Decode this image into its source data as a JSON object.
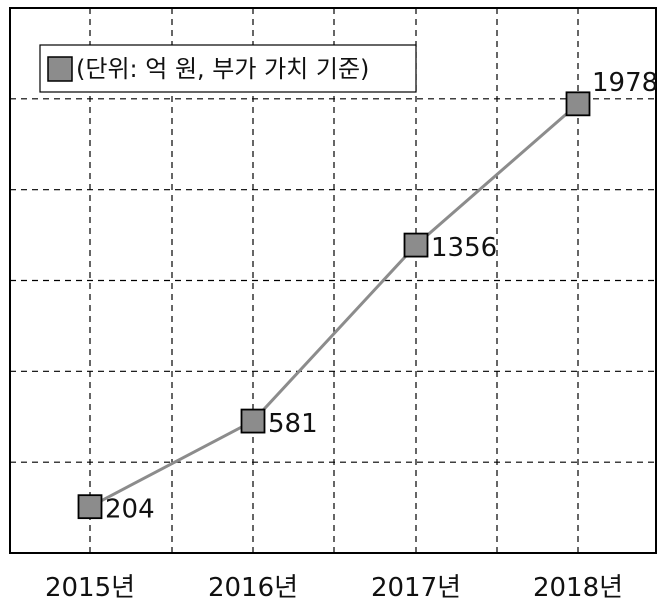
{
  "chart_data": {
    "type": "line",
    "categories": [
      "2015년",
      "2016년",
      "2017년",
      "2018년"
    ],
    "series": [
      {
        "name": "(단위: 억 원, 부가 가치 기준)",
        "values": [
          204,
          581,
          1356,
          1978
        ],
        "color": "#8c8c8c"
      }
    ],
    "data_labels": [
      "204",
      "581",
      "1356",
      "1978"
    ],
    "ylim": [
      0,
      2400
    ],
    "grid": true,
    "grid_style": "dashed",
    "legend_position": "top-left",
    "colors": {
      "line": "#8c8c8c",
      "marker_fill": "#8c8c8c",
      "marker_stroke": "#000000",
      "grid": "#000000",
      "frame": "#000000"
    }
  }
}
